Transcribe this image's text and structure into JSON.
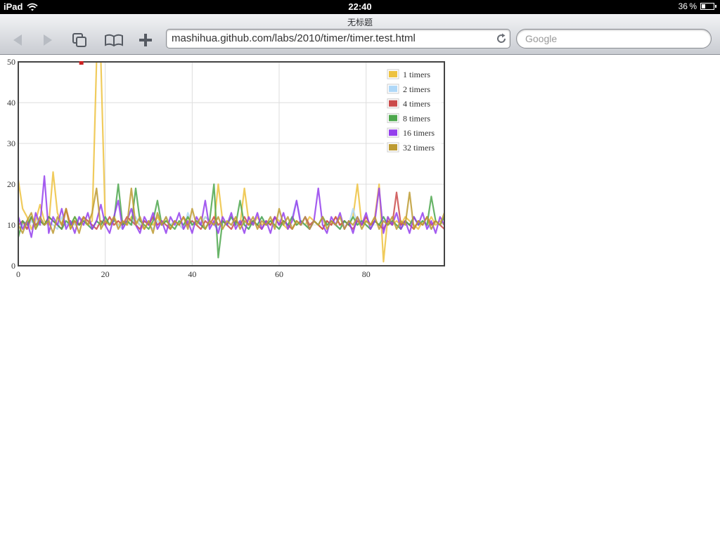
{
  "status_bar": {
    "device": "iPad",
    "time": "22:40",
    "battery_text": "36 %",
    "battery_level": 0.36,
    "wifi_icon": "wifi-icon"
  },
  "browser": {
    "page_title": "无标题",
    "url": "mashihua.github.com/labs/2010/timer/timer.test.html",
    "search_placeholder": "Google",
    "icons": [
      "back-icon",
      "forward-icon",
      "pages-icon",
      "bookmarks-icon",
      "add-icon",
      "reload-icon"
    ]
  },
  "chart_data": {
    "type": "line",
    "title": "",
    "xlabel": "",
    "ylabel": "",
    "xlim": [
      0,
      98
    ],
    "ylim": [
      0,
      50
    ],
    "x_ticks": [
      0,
      20,
      40,
      60,
      80
    ],
    "y_ticks": [
      0,
      10,
      20,
      30,
      40,
      50
    ],
    "grid": true,
    "legend_position": "top-right",
    "series": [
      {
        "name": "1 timers",
        "color": "#edc240",
        "values": [
          21,
          14,
          12,
          9,
          11,
          15,
          11,
          10,
          23,
          13,
          10,
          14,
          9,
          12,
          10,
          11,
          10,
          11,
          50,
          50,
          11,
          10,
          12,
          10,
          11,
          10,
          12,
          11,
          10,
          9,
          11,
          10,
          12,
          10,
          11,
          10,
          11,
          10,
          9,
          12,
          10,
          11,
          10,
          12,
          11,
          10,
          20,
          11,
          10,
          12,
          11,
          10,
          19,
          11,
          10,
          12,
          10,
          11,
          10,
          12,
          11,
          10,
          9,
          12,
          10,
          11,
          10,
          12,
          11,
          10,
          9,
          11,
          10,
          12,
          10,
          11,
          10,
          12,
          20,
          10,
          11,
          10,
          12,
          20,
          1,
          12,
          10,
          11,
          10,
          12,
          11,
          10,
          9,
          11,
          10,
          12,
          10,
          11,
          10
        ]
      },
      {
        "name": "2 timers",
        "color": "#afd8f8",
        "values": [
          11,
          10,
          9,
          11,
          10,
          12,
          10,
          11,
          10,
          9,
          12,
          10,
          11,
          10,
          12,
          11,
          10,
          9,
          11,
          10,
          12,
          10,
          11,
          10,
          9,
          11,
          10,
          12,
          10,
          11,
          10,
          9,
          11,
          10,
          12,
          10,
          11,
          10,
          9,
          13,
          10,
          11,
          10,
          12,
          11,
          10,
          9,
          11,
          10,
          12,
          10,
          11,
          10,
          9,
          11,
          10,
          12,
          10,
          11,
          10,
          9,
          11,
          10,
          12,
          16,
          11,
          10,
          9,
          11,
          10,
          12,
          10,
          11,
          10,
          9,
          11,
          10,
          14,
          10,
          11,
          10,
          9,
          11,
          10,
          12,
          10,
          11,
          10,
          9,
          11,
          10,
          12,
          10,
          11,
          10,
          9,
          11,
          10,
          12
        ]
      },
      {
        "name": "4 timers",
        "color": "#cb4b4b",
        "values": [
          10,
          11,
          9,
          12,
          10,
          11,
          10,
          12,
          11,
          10,
          9,
          14,
          10,
          11,
          10,
          12,
          11,
          10,
          9,
          11,
          10,
          12,
          10,
          11,
          10,
          12,
          11,
          10,
          9,
          11,
          10,
          12,
          10,
          11,
          10,
          9,
          11,
          10,
          12,
          10,
          11,
          10,
          9,
          11,
          10,
          12,
          10,
          11,
          10,
          9,
          11,
          10,
          12,
          10,
          11,
          10,
          9,
          11,
          10,
          12,
          10,
          11,
          10,
          9,
          11,
          10,
          12,
          10,
          11,
          10,
          9,
          11,
          10,
          12,
          10,
          11,
          10,
          9,
          11,
          10,
          12,
          10,
          11,
          10,
          9,
          11,
          10,
          18,
          10,
          11,
          10,
          9,
          11,
          10,
          12,
          10,
          11,
          10,
          9
        ]
      },
      {
        "name": "8 timers",
        "color": "#4da74d",
        "values": [
          7,
          11,
          10,
          12,
          9,
          11,
          10,
          12,
          11,
          10,
          9,
          11,
          10,
          12,
          10,
          11,
          10,
          9,
          11,
          10,
          12,
          10,
          11,
          20,
          10,
          11,
          10,
          19,
          11,
          10,
          9,
          11,
          16,
          10,
          11,
          10,
          9,
          11,
          10,
          12,
          10,
          11,
          10,
          9,
          11,
          20,
          2,
          11,
          10,
          12,
          10,
          16,
          10,
          9,
          11,
          10,
          12,
          10,
          11,
          10,
          9,
          11,
          10,
          12,
          10,
          11,
          10,
          9,
          11,
          10,
          12,
          10,
          11,
          10,
          9,
          11,
          10,
          12,
          10,
          11,
          10,
          9,
          11,
          10,
          12,
          10,
          11,
          10,
          9,
          11,
          10,
          12,
          10,
          11,
          10,
          17,
          11,
          10,
          12
        ]
      },
      {
        "name": "16 timers",
        "color": "#9440ed",
        "values": [
          12,
          9,
          11,
          7,
          13,
          10,
          22,
          8,
          12,
          10,
          14,
          9,
          11,
          8,
          12,
          10,
          13,
          9,
          11,
          15,
          10,
          8,
          12,
          16,
          9,
          11,
          14,
          10,
          8,
          12,
          10,
          13,
          9,
          11,
          8,
          12,
          10,
          13,
          9,
          11,
          8,
          12,
          10,
          16,
          9,
          11,
          8,
          12,
          10,
          13,
          9,
          11,
          8,
          12,
          10,
          13,
          9,
          11,
          8,
          12,
          10,
          13,
          9,
          11,
          16,
          10,
          12,
          9,
          11,
          19,
          10,
          8,
          12,
          10,
          13,
          9,
          11,
          8,
          12,
          10,
          13,
          9,
          11,
          19,
          8,
          12,
          10,
          13,
          9,
          11,
          8,
          12,
          10,
          13,
          9,
          11,
          8,
          12,
          10
        ]
      },
      {
        "name": "32 timers",
        "color": "#bd9b33",
        "values": [
          10,
          8,
          11,
          13,
          9,
          12,
          10,
          11,
          8,
          12,
          10,
          14,
          9,
          11,
          8,
          12,
          10,
          13,
          19,
          9,
          11,
          10,
          12,
          9,
          11,
          10,
          19,
          10,
          12,
          9,
          11,
          8,
          13,
          10,
          12,
          9,
          11,
          10,
          12,
          9,
          14,
          10,
          12,
          9,
          11,
          10,
          12,
          9,
          11,
          10,
          12,
          9,
          11,
          10,
          12,
          9,
          11,
          10,
          12,
          9,
          14,
          10,
          12,
          9,
          11,
          10,
          12,
          9,
          11,
          10,
          12,
          9,
          11,
          10,
          12,
          9,
          11,
          10,
          12,
          9,
          11,
          10,
          12,
          9,
          11,
          10,
          12,
          9,
          11,
          10,
          18,
          9,
          11,
          10,
          12,
          9,
          11,
          10,
          13
        ]
      }
    ]
  }
}
